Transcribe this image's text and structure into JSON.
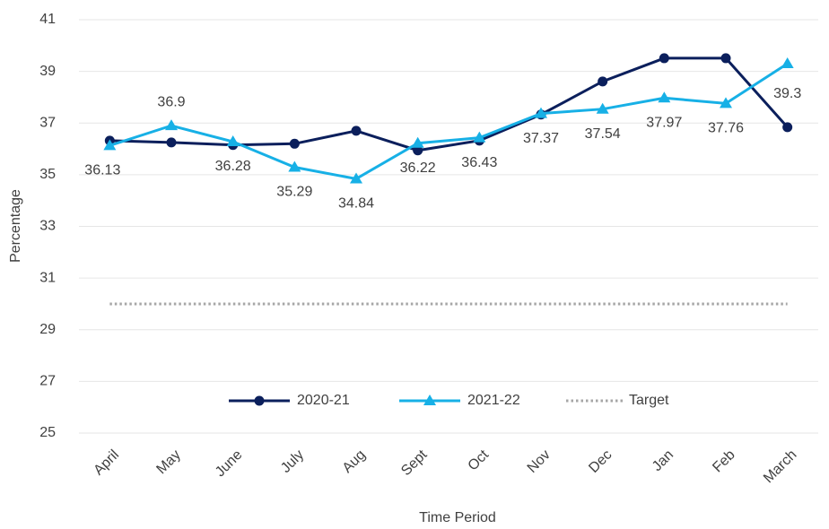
{
  "chart_data": {
    "type": "line",
    "x_label": "Time Period",
    "y_label": "Percentage",
    "categories": [
      "April",
      "May",
      "June",
      "July",
      "Aug",
      "Sept",
      "Oct",
      "Nov",
      "Dec",
      "Jan",
      "Feb",
      "March"
    ],
    "series": [
      {
        "name": "2020-21",
        "color": "#0b1f5c",
        "marker": "circle",
        "values": [
          36.32,
          36.25,
          36.15,
          36.2,
          36.7,
          35.94,
          36.32,
          37.33,
          38.61,
          39.51,
          39.51,
          36.84
        ]
      },
      {
        "name": "2021-22",
        "color": "#17b0e6",
        "marker": "triangle",
        "values": [
          36.13,
          36.9,
          36.28,
          35.29,
          34.84,
          36.22,
          36.43,
          37.37,
          37.54,
          37.97,
          37.76,
          39.3
        ],
        "data_labels": true
      }
    ],
    "target": {
      "name": "Target",
      "value": 30,
      "color": "#a6a6a6"
    },
    "ylim": [
      25,
      41
    ],
    "yticks": [
      25,
      27,
      29,
      31,
      33,
      35,
      37,
      39,
      41
    ],
    "grid": true,
    "legend": "bottom"
  }
}
